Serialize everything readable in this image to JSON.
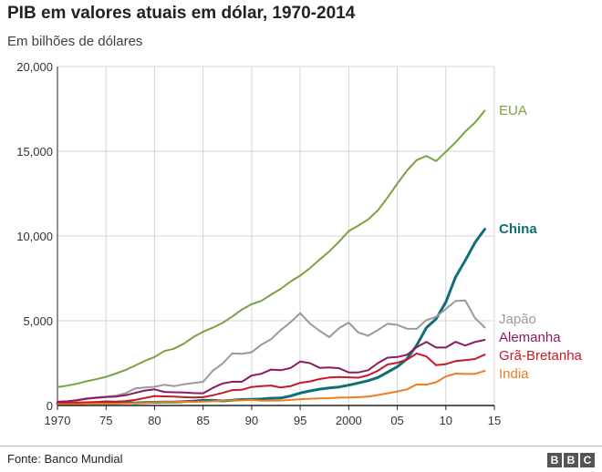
{
  "title": "PIB em valores atuais em dólar, 1970-2014",
  "subtitle": "Em bilhões de dólares",
  "source": "Fonte: Banco Mundial",
  "logo": [
    "B",
    "B",
    "C"
  ],
  "colors": {
    "EUA": "#7aa23f",
    "China": "#0f6f74",
    "Japão": "#9a9a9a",
    "Alemanha": "#8b1a63",
    "Grã-Bretanha": "#c8182b",
    "India": "#ee7d22",
    "grid": "#d4d4d4",
    "axis": "#222222"
  },
  "chart_data": {
    "type": "line",
    "title": "PIB em valores atuais em dólar, 1970-2014",
    "subtitle": "Em bilhões de dólares",
    "xlim": [
      1970,
      2015
    ],
    "ylim": [
      0,
      20000
    ],
    "x_ticks": [
      1970,
      1975,
      1980,
      1985,
      1990,
      1995,
      2000,
      2005,
      2010,
      2015
    ],
    "x_tick_labels": [
      "1970",
      "75",
      "80",
      "85",
      "90",
      "95",
      "2000",
      "05",
      "10",
      "15"
    ],
    "y_ticks": [
      0,
      5000,
      10000,
      15000,
      20000
    ],
    "y_tick_labels": [
      "0",
      "5,000",
      "10,000",
      "15,000",
      "20,000"
    ],
    "grid": true,
    "legend": "direct labels at right end of lines",
    "x": [
      1970,
      1971,
      1972,
      1973,
      1974,
      1975,
      1976,
      1977,
      1978,
      1979,
      1980,
      1981,
      1982,
      1983,
      1984,
      1985,
      1986,
      1987,
      1988,
      1989,
      1990,
      1991,
      1992,
      1993,
      1994,
      1995,
      1996,
      1997,
      1998,
      1999,
      2000,
      2001,
      2002,
      2003,
      2004,
      2005,
      2006,
      2007,
      2008,
      2009,
      2010,
      2011,
      2012,
      2013,
      2014
    ],
    "series": [
      {
        "name": "EUA",
        "values": [
          1080,
          1170,
          1280,
          1430,
          1550,
          1690,
          1880,
          2090,
          2360,
          2630,
          2860,
          3210,
          3350,
          3640,
          4040,
          4350,
          4590,
          4870,
          5250,
          5660,
          5980,
          6170,
          6540,
          6880,
          7310,
          7660,
          8100,
          8610,
          9090,
          9660,
          10290,
          10620,
          10980,
          11510,
          12270,
          13090,
          13860,
          14480,
          14720,
          14420,
          14960,
          15520,
          16160,
          16690,
          17390
        ]
      },
      {
        "name": "China",
        "values": [
          90,
          100,
          110,
          140,
          140,
          160,
          150,
          170,
          150,
          180,
          190,
          200,
          200,
          230,
          260,
          310,
          300,
          270,
          310,
          350,
          360,
          380,
          430,
          440,
          560,
          730,
          860,
          960,
          1030,
          1090,
          1200,
          1330,
          1460,
          1650,
          1960,
          2290,
          2750,
          3550,
          4590,
          5110,
          6100,
          7570,
          8560,
          9610,
          10400
        ]
      },
      {
        "name": "Japão",
        "values": [
          210,
          240,
          320,
          430,
          480,
          520,
          580,
          720,
          1010,
          1060,
          1100,
          1220,
          1140,
          1250,
          1320,
          1400,
          2050,
          2480,
          3070,
          3050,
          3140,
          3580,
          3910,
          4450,
          4910,
          5450,
          4830,
          4410,
          4030,
          4560,
          4890,
          4300,
          4120,
          4450,
          4820,
          4760,
          4530,
          4520,
          5040,
          5230,
          5700,
          6160,
          6200,
          5160,
          4600
        ]
      },
      {
        "name": "Alemanha",
        "values": [
          220,
          250,
          300,
          400,
          450,
          500,
          520,
          600,
          740,
          880,
          950,
          800,
          780,
          770,
          730,
          720,
          1040,
          1300,
          1400,
          1400,
          1770,
          1870,
          2120,
          2080,
          2210,
          2590,
          2500,
          2220,
          2240,
          2200,
          1950,
          1950,
          2080,
          2500,
          2820,
          2860,
          2990,
          3440,
          3750,
          3420,
          3420,
          3760,
          3540,
          3750,
          3870
        ]
      },
      {
        "name": "Grã-Bretanha",
        "values": [
          130,
          150,
          170,
          190,
          210,
          240,
          230,
          260,
          330,
          440,
          560,
          540,
          520,
          490,
          470,
          490,
          600,
          740,
          910,
          930,
          1090,
          1140,
          1180,
          1060,
          1140,
          1340,
          1420,
          1560,
          1650,
          1680,
          1660,
          1640,
          1780,
          2050,
          2420,
          2520,
          2710,
          3070,
          2890,
          2380,
          2440,
          2620,
          2680,
          2740,
          3000
        ]
      },
      {
        "name": "India",
        "values": [
          60,
          70,
          70,
          90,
          100,
          100,
          100,
          120,
          140,
          150,
          190,
          200,
          200,
          220,
          210,
          230,
          250,
          280,
          300,
          300,
          330,
          280,
          290,
          290,
          330,
          370,
          400,
          420,
          430,
          460,
          470,
          490,
          520,
          620,
          720,
          830,
          950,
          1240,
          1230,
          1370,
          1710,
          1880,
          1860,
          1860,
          2050
        ]
      }
    ]
  }
}
